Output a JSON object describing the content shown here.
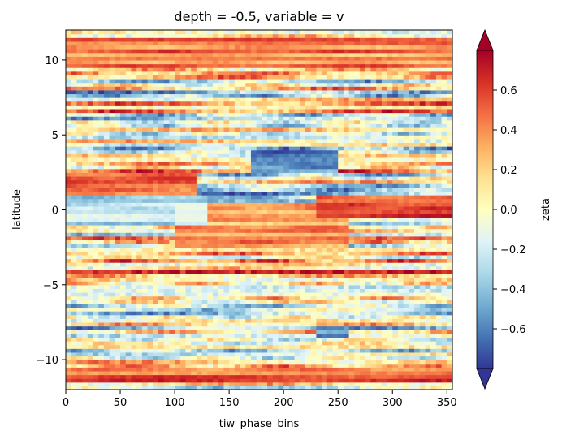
{
  "chart_data": {
    "type": "heatmap",
    "title": "depth = -0.5, variable = v",
    "xlabel": "tiw_phase_bins",
    "ylabel": "latitude",
    "xlim": [
      0,
      355
    ],
    "ylim": [
      -12,
      12
    ],
    "x_ticks": [
      0,
      50,
      100,
      150,
      200,
      250,
      300,
      350
    ],
    "y_ticks": [
      -10,
      -5,
      0,
      5,
      10
    ],
    "colorbar": {
      "label": "zeta",
      "range": [
        -0.8,
        0.8
      ],
      "ticks": [
        0.6,
        0.4,
        0.2,
        0.0,
        -0.2,
        -0.4,
        -0.6
      ],
      "tick_labels": [
        "0.6",
        "0.4",
        "0.2",
        "0.0",
        "−0.2",
        "−0.4",
        "−0.6"
      ],
      "extend": "both",
      "colormap": "RdYlBu_r"
    },
    "features": [
      {
        "x_range": [
          170,
          250
        ],
        "lat_range": [
          2.5,
          4.0
        ],
        "value": -0.7
      },
      {
        "x_range": [
          230,
          355
        ],
        "lat_range": [
          -0.5,
          1.0
        ],
        "value": 0.7
      },
      {
        "x_range": [
          0,
          120
        ],
        "lat_range": [
          1.0,
          2.5
        ],
        "value": 0.7
      },
      {
        "x_range": [
          100,
          260
        ],
        "lat_range": [
          -2.5,
          0.5
        ],
        "value": 0.45
      },
      {
        "x_range": [
          0,
          130
        ],
        "lat_range": [
          -1.0,
          1.0
        ],
        "value": -0.3
      },
      {
        "x_range": [
          0,
          355
        ],
        "lat_range": [
          9.5,
          11.5
        ],
        "value": 0.5
      },
      {
        "x_range": [
          0,
          355
        ],
        "lat_range": [
          -11.5,
          -10.5
        ],
        "value": 0.6
      },
      {
        "x_range": [
          230,
          260
        ],
        "lat_range": [
          -8.5,
          -8.0
        ],
        "value": -0.7
      }
    ]
  }
}
